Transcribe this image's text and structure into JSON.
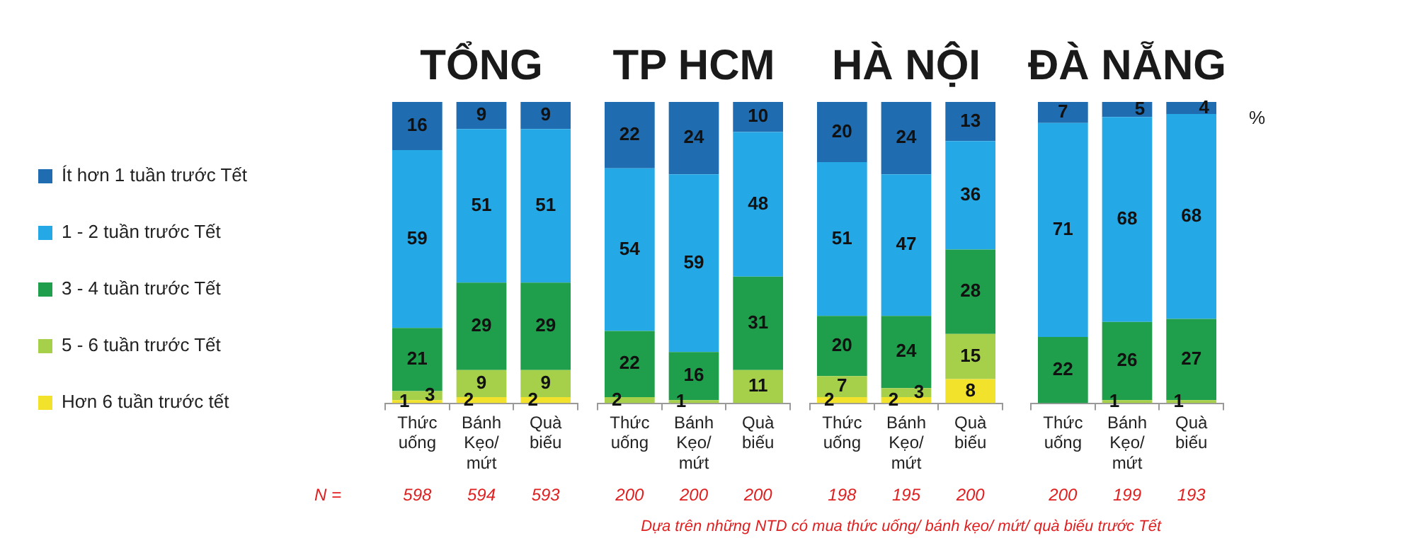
{
  "chart_data": [
    {
      "type": "bar",
      "title": "TỔNG",
      "stacked": true,
      "data_labels": true,
      "grid": false,
      "legend": "left",
      "tick_labels": "x",
      "ylim": [
        0,
        100
      ],
      "categories": [
        "Thức uống",
        "Bánh Kẹo/ mứt",
        "Quà biếu"
      ],
      "series": [
        {
          "name": "Hơn 6 tuần trước tết",
          "color": "#f2e22c",
          "values": [
            1,
            2,
            2
          ]
        },
        {
          "name": "5 - 6 tuần trước Tết",
          "color": "#a6cf4a",
          "values": [
            3,
            9,
            9
          ]
        },
        {
          "name": "3 - 4 tuần trước Tết",
          "color": "#1f9e4b",
          "values": [
            21,
            29,
            29
          ]
        },
        {
          "name": "1 - 2 tuần trước Tết",
          "color": "#25a9e6",
          "values": [
            59,
            51,
            51
          ]
        },
        {
          "name": "Ít hơn 1 tuần trước Tết",
          "color": "#1f6cb0",
          "values": [
            16,
            9,
            9
          ]
        }
      ],
      "annotations": [
        "N =",
        "598",
        "594",
        "593"
      ]
    },
    {
      "type": "bar",
      "title": "TP HCM",
      "stacked": true,
      "data_labels": true,
      "grid": false,
      "tick_labels": "x",
      "ylim": [
        0,
        100
      ],
      "categories": [
        "Thức uống",
        "Bánh Kẹo/ mứt",
        "Quà biếu"
      ],
      "series": [
        {
          "color": "#f2e22c",
          "values": [
            null,
            null,
            null
          ]
        },
        {
          "color": "#a6cf4a",
          "values": [
            2,
            1,
            11
          ]
        },
        {
          "color": "#1f9e4b",
          "values": [
            22,
            16,
            31
          ]
        },
        {
          "color": "#25a9e6",
          "values": [
            54,
            59,
            48
          ]
        },
        {
          "color": "#1f6cb0",
          "values": [
            22,
            24,
            10
          ]
        }
      ],
      "annotations": [
        "200",
        "200",
        "200"
      ]
    },
    {
      "type": "bar",
      "title": "HÀ NỘI",
      "stacked": true,
      "data_labels": true,
      "grid": false,
      "tick_labels": "x",
      "ylim": [
        0,
        100
      ],
      "categories": [
        "Thức uống",
        "Bánh Kẹo/ mứt",
        "Quà biếu"
      ],
      "series": [
        {
          "color": "#f2e22c",
          "values": [
            2,
            2,
            8
          ]
        },
        {
          "color": "#a6cf4a",
          "values": [
            7,
            3,
            15
          ]
        },
        {
          "color": "#1f9e4b",
          "values": [
            20,
            24,
            28
          ]
        },
        {
          "color": "#25a9e6",
          "values": [
            51,
            47,
            36
          ]
        },
        {
          "color": "#1f6cb0",
          "values": [
            20,
            24,
            13
          ]
        }
      ],
      "annotations": [
        "198",
        "195",
        "200"
      ]
    },
    {
      "type": "bar",
      "title": "ĐÀ NẴNG",
      "stacked": true,
      "data_labels": true,
      "grid": false,
      "tick_labels": "x",
      "ylim": [
        0,
        100
      ],
      "ylabel": "%",
      "categories": [
        "Thức uống",
        "Bánh Kẹo/ mứt",
        "Quà biếu"
      ],
      "series": [
        {
          "color": "#f2e22c",
          "values": [
            null,
            null,
            null
          ]
        },
        {
          "color": "#a6cf4a",
          "values": [
            null,
            1,
            1
          ]
        },
        {
          "color": "#1f9e4b",
          "values": [
            22,
            26,
            27
          ]
        },
        {
          "color": "#25a9e6",
          "values": [
            71,
            68,
            68
          ]
        },
        {
          "color": "#1f6cb0",
          "values": [
            7,
            5,
            4
          ]
        }
      ],
      "annotations": [
        "200",
        "199",
        "193",
        "Dựa trên những NTD có mua thức uống/ bánh kẹo/ mứt/ quà biếu trước Tết"
      ]
    }
  ]
}
